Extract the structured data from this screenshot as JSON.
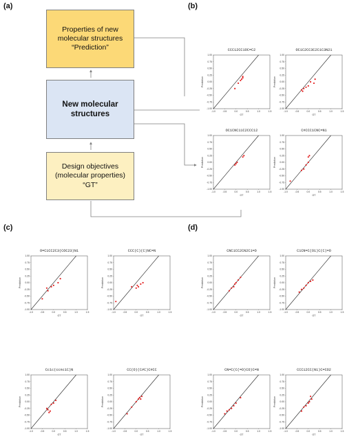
{
  "panel_labels": [
    "(a)",
    "(b)",
    "(c)",
    "(d)"
  ],
  "flow": {
    "top": "Properties of new\nmolecular structures\n“Prediction”",
    "middle": "New molecular\nstructures",
    "bottom": "Design objectives\n(molecular properties)\n“GT”",
    "colors": {
      "top": "#fcd977",
      "middle": "#dbe5f4",
      "bottom": "#fdf0c1",
      "arrow": "#7f7f7f"
    }
  },
  "axis_text": {
    "xlabel": "GT",
    "ylabel": "Prediction"
  },
  "chart_data": [
    {
      "panel": "(b)",
      "type": "scatter",
      "title": "CCC12CC1OC=C2",
      "xlabel": "GT",
      "ylabel": "Prediction",
      "xlim": [
        -1.0,
        1.5
      ],
      "ylim": [
        -1.0,
        1.0
      ],
      "xticks": [
        -1.0,
        -0.5,
        0.0,
        0.5,
        1.0,
        1.5
      ],
      "yticks": [
        1.0,
        0.75,
        0.5,
        0.25,
        0.0,
        -0.25,
        -0.5,
        -0.75,
        -1.0
      ],
      "reference_line": "y=x",
      "marker_color": "#e32222",
      "x": [
        -0.05,
        0.1,
        0.2,
        0.25,
        0.3,
        0.3
      ],
      "y": [
        -0.25,
        -0.05,
        0.05,
        0.1,
        0.15,
        0.2
      ]
    },
    {
      "panel": "(b)",
      "type": "scatter",
      "title": "OC1C2CC3C2C1C3N21",
      "xlabel": "GT",
      "ylabel": "Prediction",
      "xlim": [
        -1.0,
        1.5
      ],
      "ylim": [
        -1.0,
        1.0
      ],
      "xticks": [
        -1.0,
        -0.5,
        0.0,
        0.5,
        1.0,
        1.5
      ],
      "yticks": [
        1.0,
        0.75,
        0.5,
        0.25,
        0.0,
        -0.25,
        -0.5,
        -0.75,
        -1.0
      ],
      "reference_line": "y=x",
      "marker_color": "#e32222",
      "x": [
        -0.3,
        -0.25,
        -0.2,
        -0.1,
        0.0,
        0.1,
        0.25,
        0.3
      ],
      "y": [
        -0.3,
        -0.35,
        -0.25,
        -0.2,
        -0.15,
        0.0,
        -0.05,
        0.1
      ]
    },
    {
      "panel": "(b)",
      "type": "scatter",
      "title": "OC1CNC11C2CCC12",
      "xlabel": "GT",
      "ylabel": "Prediction",
      "xlim": [
        -1.0,
        1.5
      ],
      "ylim": [
        -1.0,
        1.0
      ],
      "xticks": [
        -1.0,
        -0.5,
        0.0,
        0.5,
        1.0,
        1.5
      ],
      "yticks": [
        1.0,
        0.75,
        0.5,
        0.25,
        0.0,
        -0.25,
        -0.5,
        -0.75,
        -1.0
      ],
      "reference_line": "y=x",
      "marker_color": "#e32222",
      "x": [
        -0.05,
        0.0,
        0.05,
        0.3,
        0.35
      ],
      "y": [
        -0.1,
        -0.05,
        0.0,
        0.2,
        0.25
      ]
    },
    {
      "panel": "(b)",
      "type": "scatter",
      "title": "C#CCC1CNC=N1",
      "xlabel": "GT",
      "ylabel": "Prediction",
      "xlim": [
        -1.0,
        1.5
      ],
      "ylim": [
        -1.0,
        1.0
      ],
      "xticks": [
        -1.0,
        -0.5,
        0.0,
        0.5,
        1.0,
        1.5
      ],
      "yticks": [
        1.0,
        0.75,
        0.5,
        0.25,
        0.0,
        -0.25,
        -0.5,
        -0.75,
        -1.0
      ],
      "reference_line": "y=x",
      "marker_color": "#e32222",
      "x": [
        -0.8,
        -0.3,
        -0.2,
        -0.1,
        0.0,
        0.0,
        0.05
      ],
      "y": [
        -0.7,
        -0.3,
        -0.25,
        -0.1,
        0.0,
        0.2,
        0.25
      ]
    },
    {
      "panel": "(c)",
      "type": "scatter",
      "title": "O=C1CC2C3(COC23)N1",
      "xlabel": "GT",
      "ylabel": "Prediction",
      "xlim": [
        -1.0,
        1.5
      ],
      "ylim": [
        -1.0,
        1.0
      ],
      "xticks": [
        -1.0,
        -0.5,
        0.0,
        0.5,
        1.0,
        1.5
      ],
      "yticks": [
        1.0,
        0.75,
        0.5,
        0.25,
        0.0,
        -0.25,
        -0.5,
        -0.75,
        -1.0
      ],
      "reference_line": "y=x",
      "marker_color": "#e32222",
      "x": [
        -0.5,
        -0.3,
        -0.25,
        -0.1,
        0.0,
        0.2,
        0.3
      ],
      "y": [
        -0.6,
        -0.2,
        -0.3,
        -0.15,
        -0.1,
        0.0,
        0.15
      ]
    },
    {
      "panel": "(c)",
      "type": "scatter",
      "title": "CCC(C)(C)NC=N",
      "xlabel": "GT",
      "ylabel": "Prediction",
      "xlim": [
        -1.0,
        1.5
      ],
      "ylim": [
        -1.0,
        1.0
      ],
      "xticks": [
        -1.0,
        -0.5,
        0.0,
        0.5,
        1.0,
        1.5
      ],
      "yticks": [
        1.0,
        0.75,
        0.5,
        0.25,
        0.0,
        -0.25,
        -0.5,
        -0.75,
        -1.0
      ],
      "reference_line": "y=x",
      "marker_color": "#e32222",
      "x": [
        -0.9,
        -0.2,
        0.0,
        0.05,
        0.1,
        0.2,
        0.3
      ],
      "y": [
        -0.7,
        -0.15,
        -0.2,
        -0.1,
        -0.15,
        -0.05,
        0.0
      ]
    },
    {
      "panel": "(c)",
      "type": "scatter",
      "title": "Cc1c(ccnc1C)N",
      "xlabel": "GT",
      "ylabel": "Prediction",
      "xlim": [
        -1.0,
        1.5
      ],
      "ylim": [
        -1.0,
        1.0
      ],
      "xticks": [
        -1.0,
        -0.5,
        0.0,
        0.5,
        1.0,
        1.5
      ],
      "yticks": [
        1.0,
        0.75,
        0.5,
        0.25,
        0.0,
        -0.25,
        -0.5,
        -0.75,
        -1.0
      ],
      "reference_line": "y=x",
      "marker_color": "#e32222",
      "x": [
        -0.3,
        -0.25,
        -0.2,
        -0.15,
        -0.1,
        0.0,
        0.1
      ],
      "y": [
        -0.25,
        -0.3,
        -0.4,
        -0.35,
        -0.1,
        -0.05,
        0.05
      ]
    },
    {
      "panel": "(c)",
      "type": "scatter",
      "title": "CC(O)(C#C)C#CC",
      "xlabel": "GT",
      "ylabel": "Prediction",
      "xlim": [
        -1.0,
        1.5
      ],
      "ylim": [
        -1.0,
        1.0
      ],
      "xticks": [
        -1.0,
        -0.5,
        0.0,
        0.5,
        1.0,
        1.5
      ],
      "yticks": [
        1.0,
        0.75,
        0.5,
        0.25,
        0.0,
        -0.25,
        -0.5,
        -0.75,
        -1.0
      ],
      "reference_line": "y=x",
      "marker_color": "#e32222",
      "x": [
        -0.4,
        -0.2,
        0.0,
        0.1,
        0.15,
        0.2,
        0.25
      ],
      "y": [
        -0.45,
        -0.2,
        0.0,
        0.1,
        0.15,
        0.1,
        0.2
      ]
    },
    {
      "panel": "(d)",
      "type": "scatter",
      "title": "CNC1CC2CN2C1=O",
      "xlabel": "GT",
      "ylabel": "Prediction",
      "xlim": [
        -1.0,
        1.5
      ],
      "ylim": [
        -1.0,
        1.0
      ],
      "xticks": [
        -1.0,
        -0.5,
        0.0,
        0.5,
        1.0,
        1.5
      ],
      "yticks": [
        1.0,
        0.75,
        0.5,
        0.25,
        0.0,
        -0.25,
        -0.5,
        -0.75,
        -1.0
      ],
      "reference_line": "y=x",
      "marker_color": "#e32222",
      "x": [
        -0.3,
        -0.2,
        -0.1,
        -0.05,
        0.0,
        0.1,
        0.2
      ],
      "y": [
        -0.3,
        -0.2,
        -0.15,
        -0.05,
        0.0,
        0.1,
        0.2
      ]
    },
    {
      "panel": "(d)",
      "type": "scatter",
      "title": "C1CN=C(O1)C(C)=O",
      "xlabel": "GT",
      "ylabel": "Prediction",
      "xlim": [
        -1.0,
        1.5
      ],
      "ylim": [
        -1.0,
        1.0
      ],
      "xticks": [
        -1.0,
        -0.5,
        0.0,
        0.5,
        1.0,
        1.5
      ],
      "yticks": [
        1.0,
        0.75,
        0.5,
        0.25,
        0.0,
        -0.25,
        -0.5,
        -0.75,
        -1.0
      ],
      "reference_line": "y=x",
      "marker_color": "#e32222",
      "x": [
        -0.4,
        -0.3,
        -0.2,
        -0.1,
        0.0,
        0.1,
        0.2
      ],
      "y": [
        -0.35,
        -0.25,
        -0.2,
        -0.1,
        0.0,
        0.05,
        0.1
      ]
    },
    {
      "panel": "(d)",
      "type": "scatter",
      "title": "CN=C(C(=O)CO)C=N",
      "xlabel": "GT",
      "ylabel": "Prediction",
      "xlim": [
        -1.0,
        1.5
      ],
      "ylim": [
        -1.0,
        1.0
      ],
      "xticks": [
        -1.0,
        -0.5,
        0.0,
        0.5,
        1.0,
        1.5
      ],
      "yticks": [
        1.0,
        0.75,
        0.5,
        0.25,
        0.0,
        -0.25,
        -0.5,
        -0.75,
        -1.0
      ],
      "reference_line": "y=x",
      "marker_color": "#e32222",
      "x": [
        -0.5,
        -0.4,
        -0.3,
        -0.2,
        -0.1,
        0.0,
        0.2
      ],
      "y": [
        -0.45,
        -0.35,
        -0.3,
        -0.25,
        -0.15,
        -0.05,
        0.15
      ]
    },
    {
      "panel": "(d)",
      "type": "scatter",
      "title": "CCC12CC(N1)C=CO2",
      "xlabel": "GT",
      "ylabel": "Prediction",
      "xlim": [
        -1.0,
        1.5
      ],
      "ylim": [
        -1.0,
        1.0
      ],
      "xticks": [
        -1.0,
        -0.5,
        0.0,
        0.5,
        1.0,
        1.5
      ],
      "yticks": [
        1.0,
        0.75,
        0.5,
        0.25,
        0.0,
        -0.25,
        -0.5,
        -0.75,
        -1.0
      ],
      "reference_line": "y=x",
      "marker_color": "#e32222",
      "x": [
        -0.3,
        -0.2,
        -0.1,
        0.0,
        0.05,
        0.1,
        0.15
      ],
      "y": [
        -0.35,
        -0.2,
        -0.15,
        -0.05,
        0.0,
        0.2,
        0.1
      ]
    }
  ]
}
